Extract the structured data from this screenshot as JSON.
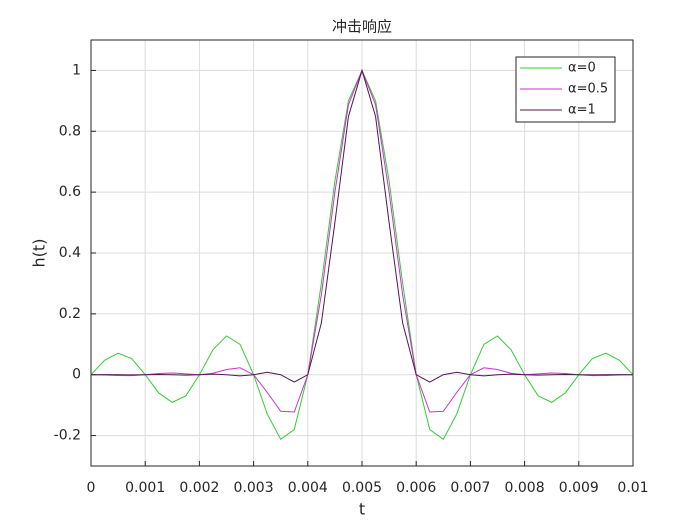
{
  "chart_data": {
    "type": "line",
    "title": "冲击响应",
    "xlabel": "t",
    "ylabel": "h(t)",
    "x": [
      0,
      0.00025,
      0.0005,
      0.00075,
      0.001,
      0.00125,
      0.0015,
      0.00175,
      0.002,
      0.00225,
      0.0025,
      0.00275,
      0.003,
      0.00325,
      0.0035,
      0.00375,
      0.004,
      0.00425,
      0.0045,
      0.00475,
      0.005,
      0.00525,
      0.0055,
      0.00575,
      0.006,
      0.00625,
      0.0065,
      0.00675,
      0.007,
      0.00725,
      0.0075,
      0.00775,
      0.008,
      0.00825,
      0.0085,
      0.00875,
      0.009,
      0.00925,
      0.0095,
      0.00975,
      0.01
    ],
    "series": [
      {
        "name": "α=0",
        "color": "#33cc33",
        "values": [
          0,
          0.0474,
          0.0707,
          0.053,
          0,
          -0.06,
          -0.0909,
          -0.0693,
          0,
          0.0818,
          0.1273,
          0.1,
          0,
          -0.1286,
          -0.2122,
          -0.1801,
          0,
          0.3001,
          0.6366,
          0.9003,
          1,
          0.9003,
          0.6366,
          0.3001,
          0,
          -0.1801,
          -0.2122,
          -0.1286,
          0,
          0.1,
          0.1273,
          0.0818,
          0,
          -0.0693,
          -0.0909,
          -0.06,
          0,
          0.053,
          0.0707,
          0.0474,
          0
        ]
      },
      {
        "name": "α=0.5",
        "color": "#cc33cc",
        "values": [
          0,
          -0.0008,
          -0.0026,
          -0.0029,
          0,
          0.0042,
          0.0057,
          0.0028,
          0,
          0.0048,
          0.0171,
          0.0227,
          0,
          -0.0576,
          -0.12,
          -0.1225,
          0,
          0.2625,
          0.6002,
          0.8872,
          1,
          0.8872,
          0.6002,
          0.2625,
          0,
          -0.1225,
          -0.12,
          -0.0576,
          0,
          0.0227,
          0.0171,
          0.0048,
          0,
          0.0028,
          0.0057,
          0.0042,
          0,
          -0.0029,
          -0.0026,
          -0.0008,
          0
        ]
      },
      {
        "name": "α=1",
        "color": "#4d1a4d",
        "values": [
          0,
          0.0004,
          0,
          -0.0005,
          0,
          0.0008,
          0,
          -0.0012,
          0,
          0.002,
          0,
          -0.0037,
          0,
          0.0081,
          0,
          -0.0243,
          0,
          0.1698,
          0.5,
          0.8488,
          1,
          0.8488,
          0.5,
          0.1698,
          0,
          -0.0243,
          0,
          0.0081,
          0,
          -0.0037,
          0,
          0.002,
          0,
          -0.0012,
          0,
          0.0008,
          0,
          -0.0005,
          0,
          0.0004,
          0
        ]
      }
    ],
    "xlim": [
      0,
      0.01
    ],
    "xticks": [
      0,
      0.001,
      0.002,
      0.003,
      0.004,
      0.005,
      0.006,
      0.007,
      0.008,
      0.009,
      0.01
    ],
    "ylim": [
      -0.3,
      1.1
    ],
    "yticks": [
      -0.2,
      0,
      0.2,
      0.4,
      0.6,
      0.8,
      1
    ],
    "grid": true,
    "legend_location": "northeast"
  }
}
